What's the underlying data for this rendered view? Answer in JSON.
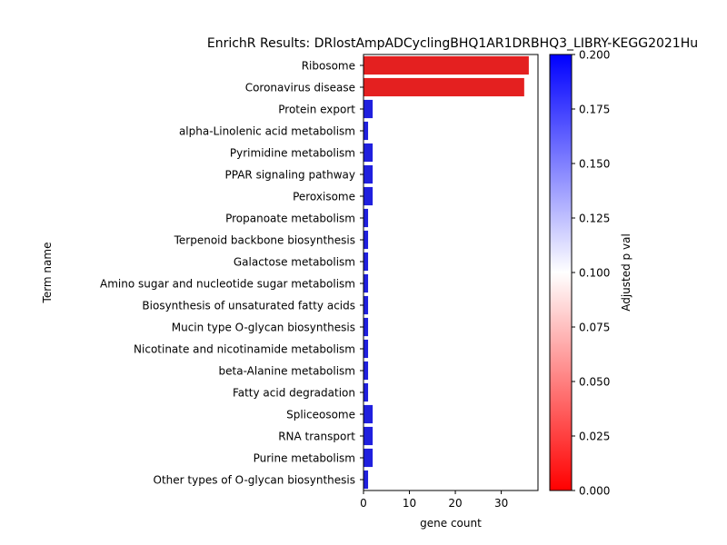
{
  "chart_data": {
    "type": "bar",
    "orientation": "horizontal",
    "title": "EnrichR Results: DRlostAmpADCyclingBHQ1AR1DRBHQ3_LIBRY-KEGG2021Hu",
    "xlabel": "gene count",
    "ylabel": "Term name",
    "xlim": [
      0,
      38
    ],
    "xticks": [
      "0",
      "10",
      "20",
      "30"
    ],
    "categories": [
      "Ribosome",
      "Coronavirus disease",
      "Protein export",
      "alpha-Linolenic acid metabolism",
      "Pyrimidine metabolism",
      "PPAR signaling pathway",
      "Peroxisome",
      "Propanoate metabolism",
      "Terpenoid backbone biosynthesis",
      "Galactose metabolism",
      "Amino sugar and nucleotide sugar metabolism",
      "Biosynthesis of unsaturated fatty acids",
      "Mucin type O-glycan biosynthesis",
      "Nicotinate and nicotinamide metabolism",
      "beta-Alanine metabolism",
      "Fatty acid degradation",
      "Spliceosome",
      "RNA transport",
      "Purine metabolism",
      "Other types of O-glycan biosynthesis"
    ],
    "values": [
      36,
      35,
      2,
      1,
      2,
      2,
      2,
      1,
      1,
      1,
      1,
      1,
      1,
      1,
      1,
      1,
      2,
      2,
      2,
      1
    ],
    "adjusted_p": [
      0.0,
      0.0,
      0.2,
      0.2,
      0.2,
      0.2,
      0.2,
      0.2,
      0.2,
      0.2,
      0.2,
      0.2,
      0.2,
      0.2,
      0.2,
      0.2,
      0.2,
      0.2,
      0.2,
      0.2
    ],
    "colorbar": {
      "label": "Adjusted p val",
      "range": [
        0,
        0.2
      ],
      "ticks": [
        "0.000",
        "0.025",
        "0.050",
        "0.075",
        "0.100",
        "0.125",
        "0.150",
        "0.175",
        "0.200"
      ],
      "colors": [
        "#ff0000",
        "#ffffff",
        "#0000ff"
      ]
    },
    "grid": false,
    "bar_edge_color": "#ffffff"
  }
}
